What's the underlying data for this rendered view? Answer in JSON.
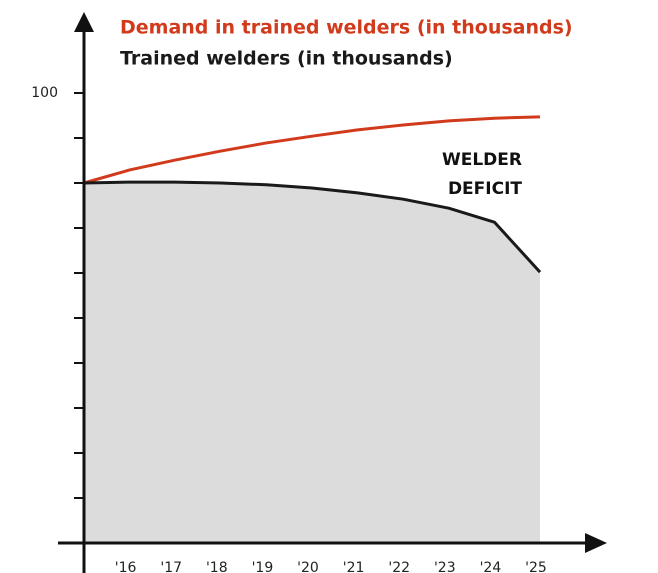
{
  "chart_data": {
    "type": "line",
    "categories": [
      null,
      "'16",
      "'17",
      "'18",
      "'19",
      "'20",
      "'21",
      "'22",
      "'23",
      "'24",
      "'25"
    ],
    "series": [
      {
        "name": "Demand in trained welders (in thousands)",
        "color": "#d23a1c",
        "values": [
          80,
          82.9,
          85.1,
          87.1,
          88.9,
          90.4,
          91.8,
          92.9,
          93.8,
          94.4,
          94.7
        ]
      },
      {
        "name": "Trained welders (in thousands)",
        "color": "#1a1a1a",
        "fill": "#dcdcdc",
        "values": [
          80,
          80.2,
          80.2,
          80,
          79.6,
          78.9,
          77.8,
          76.4,
          74.4,
          71.3,
          60.2
        ]
      }
    ],
    "annotation": [
      "WELDER",
      "DEFICIT"
    ],
    "ylim": [
      0,
      100
    ],
    "yticks": [
      100
    ],
    "yminor_ticks": [
      10,
      20,
      30,
      40,
      50,
      60,
      70,
      80,
      90
    ]
  }
}
